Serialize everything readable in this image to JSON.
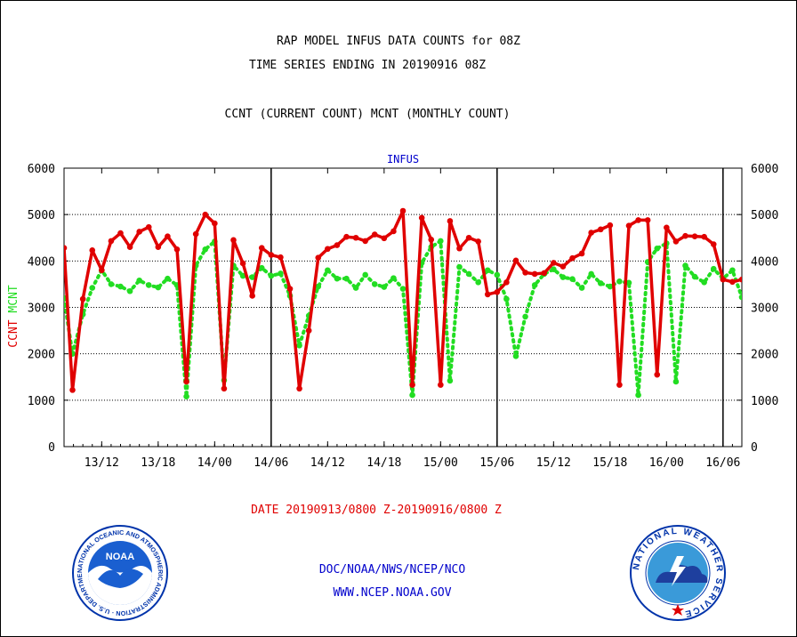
{
  "titles": {
    "line1": "RAP MODEL INFUS DATA COUNTS for 08Z",
    "line2": "TIME SERIES ENDING IN 20190916 08Z",
    "line3": "CCNT (CURRENT COUNT) MCNT (MONTHLY COUNT)"
  },
  "footer": {
    "date_range": "DATE 20190913/0800 Z-20190916/0800 Z",
    "org": "DOC/NOAA/NWS/NCEP/NCO",
    "url": "WWW.NCEP.NOAA.GOV"
  },
  "logos": {
    "noaa_text": "NOAA",
    "noaa_ring": "NATIONAL OCEANIC AND ATMOSPHERIC ADMINISTRATION · U.S. DEPARTMENT OF COMMERCE ·",
    "nws_ring": "NATIONAL WEATHER SERVICE"
  },
  "colors": {
    "ccnt": "#e00000",
    "mcnt": "#22dd22",
    "axis_title": "#0000cc",
    "grid": "#000000"
  },
  "chart_data": {
    "type": "line",
    "title": "INFUS",
    "ylabel_left": "CCNT",
    "ylabel_left2": "MCNT",
    "ylim": [
      0,
      6000
    ],
    "yticks": [
      0,
      1000,
      2000,
      3000,
      4000,
      5000,
      6000
    ],
    "xlim": [
      0,
      72
    ],
    "xticks": [
      {
        "x": 4,
        "label": "13/12"
      },
      {
        "x": 10,
        "label": "13/18"
      },
      {
        "x": 16,
        "label": "14/00"
      },
      {
        "x": 22,
        "label": "14/06"
      },
      {
        "x": 28,
        "label": "14/12"
      },
      {
        "x": 34,
        "label": "14/18"
      },
      {
        "x": 40,
        "label": "15/00"
      },
      {
        "x": 46,
        "label": "15/06"
      },
      {
        "x": 52,
        "label": "15/12"
      },
      {
        "x": 58,
        "label": "15/18"
      },
      {
        "x": 64,
        "label": "16/00"
      },
      {
        "x": 70,
        "label": "16/06"
      }
    ],
    "day_boundaries": [
      22,
      46,
      70
    ],
    "grid": true,
    "series": [
      {
        "name": "CCNT",
        "color": "#e00000",
        "x": [
          0,
          0.9,
          2,
          3,
          4,
          5,
          6,
          7,
          8,
          9,
          10,
          11,
          12,
          13,
          14,
          15,
          16,
          17,
          18,
          19,
          20,
          21,
          22,
          23,
          24,
          25,
          26,
          27,
          28,
          29,
          30,
          31,
          32,
          33,
          34,
          35,
          36,
          37,
          38,
          39,
          40,
          41,
          42,
          43,
          44,
          45,
          46,
          47,
          48,
          49,
          50,
          51,
          52,
          53,
          54,
          55,
          56,
          57,
          58,
          59,
          60,
          61,
          62,
          63,
          64,
          65,
          66,
          67,
          68,
          69,
          70,
          71,
          72
        ],
        "values": [
          4280,
          1220,
          3180,
          4230,
          3800,
          4430,
          4600,
          4300,
          4630,
          4730,
          4300,
          4530,
          4250,
          1400,
          4580,
          5000,
          4810,
          1250,
          4450,
          3950,
          3250,
          4280,
          4130,
          4080,
          3400,
          1250,
          2500,
          4070,
          4260,
          4340,
          4520,
          4500,
          4430,
          4570,
          4490,
          4640,
          5080,
          1330,
          4930,
          4460,
          1330,
          4860,
          4270,
          4500,
          4420,
          3280,
          3330,
          3540,
          4010,
          3750,
          3720,
          3740,
          3960,
          3880,
          4060,
          4160,
          4610,
          4680,
          4770,
          1330,
          4760,
          4880,
          4880,
          1550,
          4720,
          4420,
          4540,
          4530,
          4520,
          4360,
          3600,
          3550,
          3600
        ]
      },
      {
        "name": "MCNT",
        "color": "#22dd22",
        "x": [
          0,
          0.9,
          2,
          3,
          4,
          5,
          6,
          7,
          8,
          9,
          10,
          11,
          12,
          13,
          14,
          15,
          16,
          17,
          18,
          19,
          20,
          21,
          22,
          23,
          24,
          25,
          26,
          27,
          28,
          29,
          30,
          31,
          32,
          33,
          34,
          35,
          36,
          37,
          38,
          39,
          40,
          41,
          42,
          43,
          44,
          45,
          46,
          47,
          48,
          49,
          50,
          51,
          52,
          53,
          54,
          55,
          56,
          57,
          58,
          59,
          60,
          61,
          62,
          63,
          64,
          65,
          66,
          67,
          68,
          69,
          70,
          71,
          72
        ],
        "values": [
          3200,
          2000,
          2850,
          3420,
          3800,
          3500,
          3450,
          3350,
          3580,
          3480,
          3430,
          3620,
          3480,
          1080,
          3900,
          4250,
          4420,
          1430,
          3900,
          3680,
          3650,
          3850,
          3680,
          3730,
          3250,
          2180,
          2820,
          3450,
          3800,
          3620,
          3620,
          3420,
          3700,
          3500,
          3440,
          3630,
          3400,
          1110,
          3960,
          4300,
          4430,
          1420,
          3870,
          3720,
          3540,
          3800,
          3700,
          3180,
          1950,
          2800,
          3480,
          3720,
          3820,
          3650,
          3610,
          3420,
          3720,
          3520,
          3450,
          3560,
          3530,
          1110,
          3980,
          4270,
          4380,
          1400,
          3900,
          3660,
          3540,
          3830,
          3620,
          3800,
          3220
        ]
      }
    ]
  }
}
